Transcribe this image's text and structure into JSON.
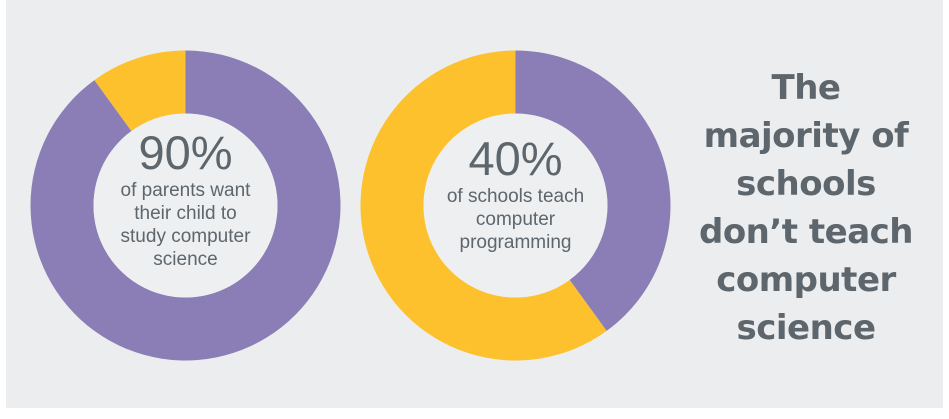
{
  "colors": {
    "background": "#ecedee",
    "purple": "#8b7db5",
    "yellow": "#fcc12d",
    "inner": "#eeeff0",
    "text": "#5d666d"
  },
  "chart_data": [
    {
      "type": "pie",
      "style": "donut",
      "values": [
        90,
        10
      ],
      "colors": [
        "#8b7db5",
        "#fcc12d"
      ],
      "center_value": "90%",
      "center_text": "of parents want their child to study computer science",
      "center_lines": [
        "of parents want",
        "their child to",
        "study computer",
        "science"
      ]
    },
    {
      "type": "pie",
      "style": "donut",
      "values": [
        40,
        60
      ],
      "colors": [
        "#8b7db5",
        "#fcc12d"
      ],
      "center_value": "40%",
      "center_text": "of schools teach computer programming",
      "center_lines": [
        "of schools teach",
        "computer",
        "programming"
      ]
    }
  ],
  "headline": {
    "lines": [
      "The",
      "majority of",
      "schools",
      "don’t teach",
      "computer",
      "science"
    ]
  }
}
